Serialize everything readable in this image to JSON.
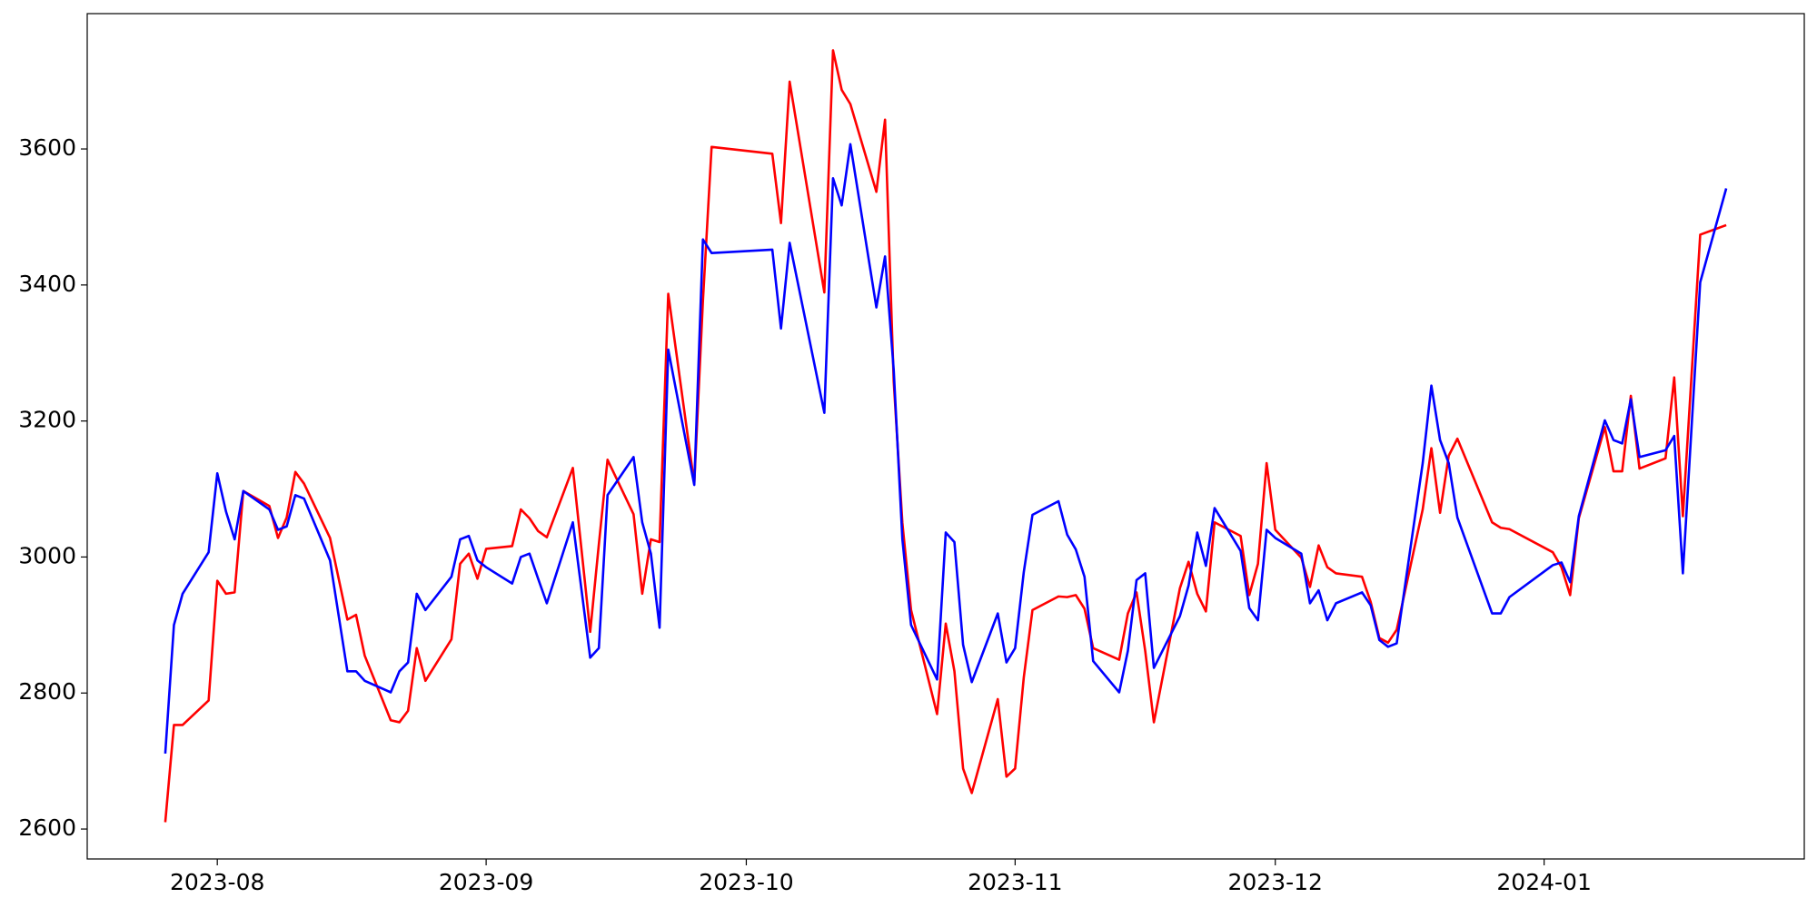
{
  "chart_data": {
    "type": "line",
    "x": [
      "2023-07-26",
      "2023-07-27",
      "2023-07-28",
      "2023-07-31",
      "2023-08-01",
      "2023-08-02",
      "2023-08-03",
      "2023-08-04",
      "2023-08-07",
      "2023-08-08",
      "2023-08-09",
      "2023-08-10",
      "2023-08-11",
      "2023-08-14",
      "2023-08-16",
      "2023-08-17",
      "2023-08-18",
      "2023-08-21",
      "2023-08-22",
      "2023-08-23",
      "2023-08-24",
      "2023-08-25",
      "2023-08-28",
      "2023-08-29",
      "2023-08-30",
      "2023-08-31",
      "2023-09-01",
      "2023-09-04",
      "2023-09-05",
      "2023-09-06",
      "2023-09-07",
      "2023-09-08",
      "2023-09-11",
      "2023-09-13",
      "2023-09-14",
      "2023-09-15",
      "2023-09-18",
      "2023-09-19",
      "2023-09-20",
      "2023-09-21",
      "2023-09-22",
      "2023-09-25",
      "2023-09-26",
      "2023-09-27",
      "2023-10-04",
      "2023-10-05",
      "2023-10-06",
      "2023-10-10",
      "2023-10-11",
      "2023-10-12",
      "2023-10-13",
      "2023-10-16",
      "2023-10-17",
      "2023-10-18",
      "2023-10-19",
      "2023-10-20",
      "2023-10-23",
      "2023-10-24",
      "2023-10-25",
      "2023-10-26",
      "2023-10-27",
      "2023-10-30",
      "2023-10-31",
      "2023-11-01",
      "2023-11-02",
      "2023-11-03",
      "2023-11-06",
      "2023-11-07",
      "2023-11-08",
      "2023-11-09",
      "2023-11-10",
      "2023-11-13",
      "2023-11-14",
      "2023-11-15",
      "2023-11-16",
      "2023-11-17",
      "2023-11-20",
      "2023-11-21",
      "2023-11-22",
      "2023-11-23",
      "2023-11-24",
      "2023-11-27",
      "2023-11-28",
      "2023-11-29",
      "2023-11-30",
      "2023-12-01",
      "2023-12-04",
      "2023-12-05",
      "2023-12-06",
      "2023-12-07",
      "2023-12-08",
      "2023-12-11",
      "2023-12-12",
      "2023-12-13",
      "2023-12-14",
      "2023-12-15",
      "2023-12-18",
      "2023-12-19",
      "2023-12-20",
      "2023-12-21",
      "2023-12-22",
      "2023-12-26",
      "2023-12-27",
      "2023-12-28",
      "2024-01-02",
      "2024-01-03",
      "2024-01-04",
      "2024-01-05",
      "2024-01-08",
      "2024-01-09",
      "2024-01-10",
      "2024-01-11",
      "2024-01-12",
      "2024-01-15",
      "2024-01-16",
      "2024-01-17",
      "2024-01-19",
      "2024-01-22"
    ],
    "series": [
      {
        "color": "#ff0000",
        "values": [
          2610,
          2753,
          2753,
          2789,
          2965,
          2946,
          2948,
          3097,
          3075,
          3028,
          3058,
          3125,
          3108,
          3028,
          2908,
          2915,
          2855,
          2760,
          2757,
          2774,
          2866,
          2818,
          2879,
          2990,
          3005,
          2968,
          3012,
          3016,
          3070,
          3057,
          3038,
          3029,
          3131,
          2890,
          3019,
          3143,
          3063,
          2946,
          3026,
          3022,
          3387,
          3108,
          3377,
          3603,
          3593,
          3491,
          3699,
          3389,
          3745,
          3687,
          3666,
          3537,
          3643,
          3258,
          3050,
          2922,
          2769,
          2902,
          2832,
          2689,
          2653,
          2791,
          2677,
          2689,
          2823,
          2922,
          2942,
          2941,
          2944,
          2924,
          2866,
          2849,
          2917,
          2948,
          2862,
          2757,
          2954,
          2993,
          2946,
          2920,
          3051,
          3031,
          2944,
          2990,
          3138,
          3040,
          2999,
          2956,
          3017,
          2985,
          2976,
          2971,
          2934,
          2881,
          2874,
          2893,
          3070,
          3160,
          3065,
          3149,
          3174,
          3051,
          3043,
          3041,
          3007,
          2985,
          2944,
          3057,
          3191,
          3126,
          3126,
          3237,
          3130,
          3145,
          3264,
          3060,
          3474,
          3488
        ]
      },
      {
        "color": "#0000ff",
        "values": [
          2711,
          2900,
          2946,
          3007,
          3123,
          3067,
          3026,
          3097,
          3070,
          3040,
          3045,
          3091,
          3086,
          2995,
          2832,
          2832,
          2818,
          2801,
          2832,
          2845,
          2946,
          2922,
          2971,
          3026,
          3031,
          2995,
          2985,
          2961,
          3000,
          3005,
          2968,
          2932,
          3051,
          2852,
          2866,
          3091,
          3147,
          3051,
          3005,
          2896,
          3305,
          3106,
          3467,
          3447,
          3452,
          3336,
          3462,
          3212,
          3557,
          3517,
          3607,
          3367,
          3442,
          3275,
          3026,
          2900,
          2820,
          3036,
          3022,
          2871,
          2816,
          2917,
          2845,
          2866,
          2978,
          3062,
          3082,
          3033,
          3011,
          2971,
          2847,
          2801,
          2862,
          2966,
          2976,
          2837,
          2913,
          2958,
          3036,
          2987,
          3072,
          3009,
          2925,
          2907,
          3040,
          3028,
          3005,
          2932,
          2951,
          2907,
          2932,
          2948,
          2929,
          2878,
          2868,
          2873,
          3138,
          3252,
          3172,
          3138,
          3058,
          2917,
          2917,
          2941,
          2988,
          2992,
          2963,
          3060,
          3201,
          3172,
          3167,
          3232,
          3147,
          3157,
          3178,
          2976,
          3404,
          3542
        ]
      }
    ],
    "xlim": [
      "2023-07-17",
      "2024-01-31"
    ],
    "xticks": [
      {
        "value": "2023-08-01",
        "label": "2023-08"
      },
      {
        "value": "2023-09-01",
        "label": "2023-09"
      },
      {
        "value": "2023-10-01",
        "label": "2023-10"
      },
      {
        "value": "2023-11-01",
        "label": "2023-11"
      },
      {
        "value": "2023-12-01",
        "label": "2023-12"
      },
      {
        "value": "2024-01-01",
        "label": "2024-01"
      }
    ],
    "ylim": [
      2556,
      3799
    ],
    "yticks": [
      2600,
      2800,
      3000,
      3200,
      3400,
      3600
    ]
  }
}
